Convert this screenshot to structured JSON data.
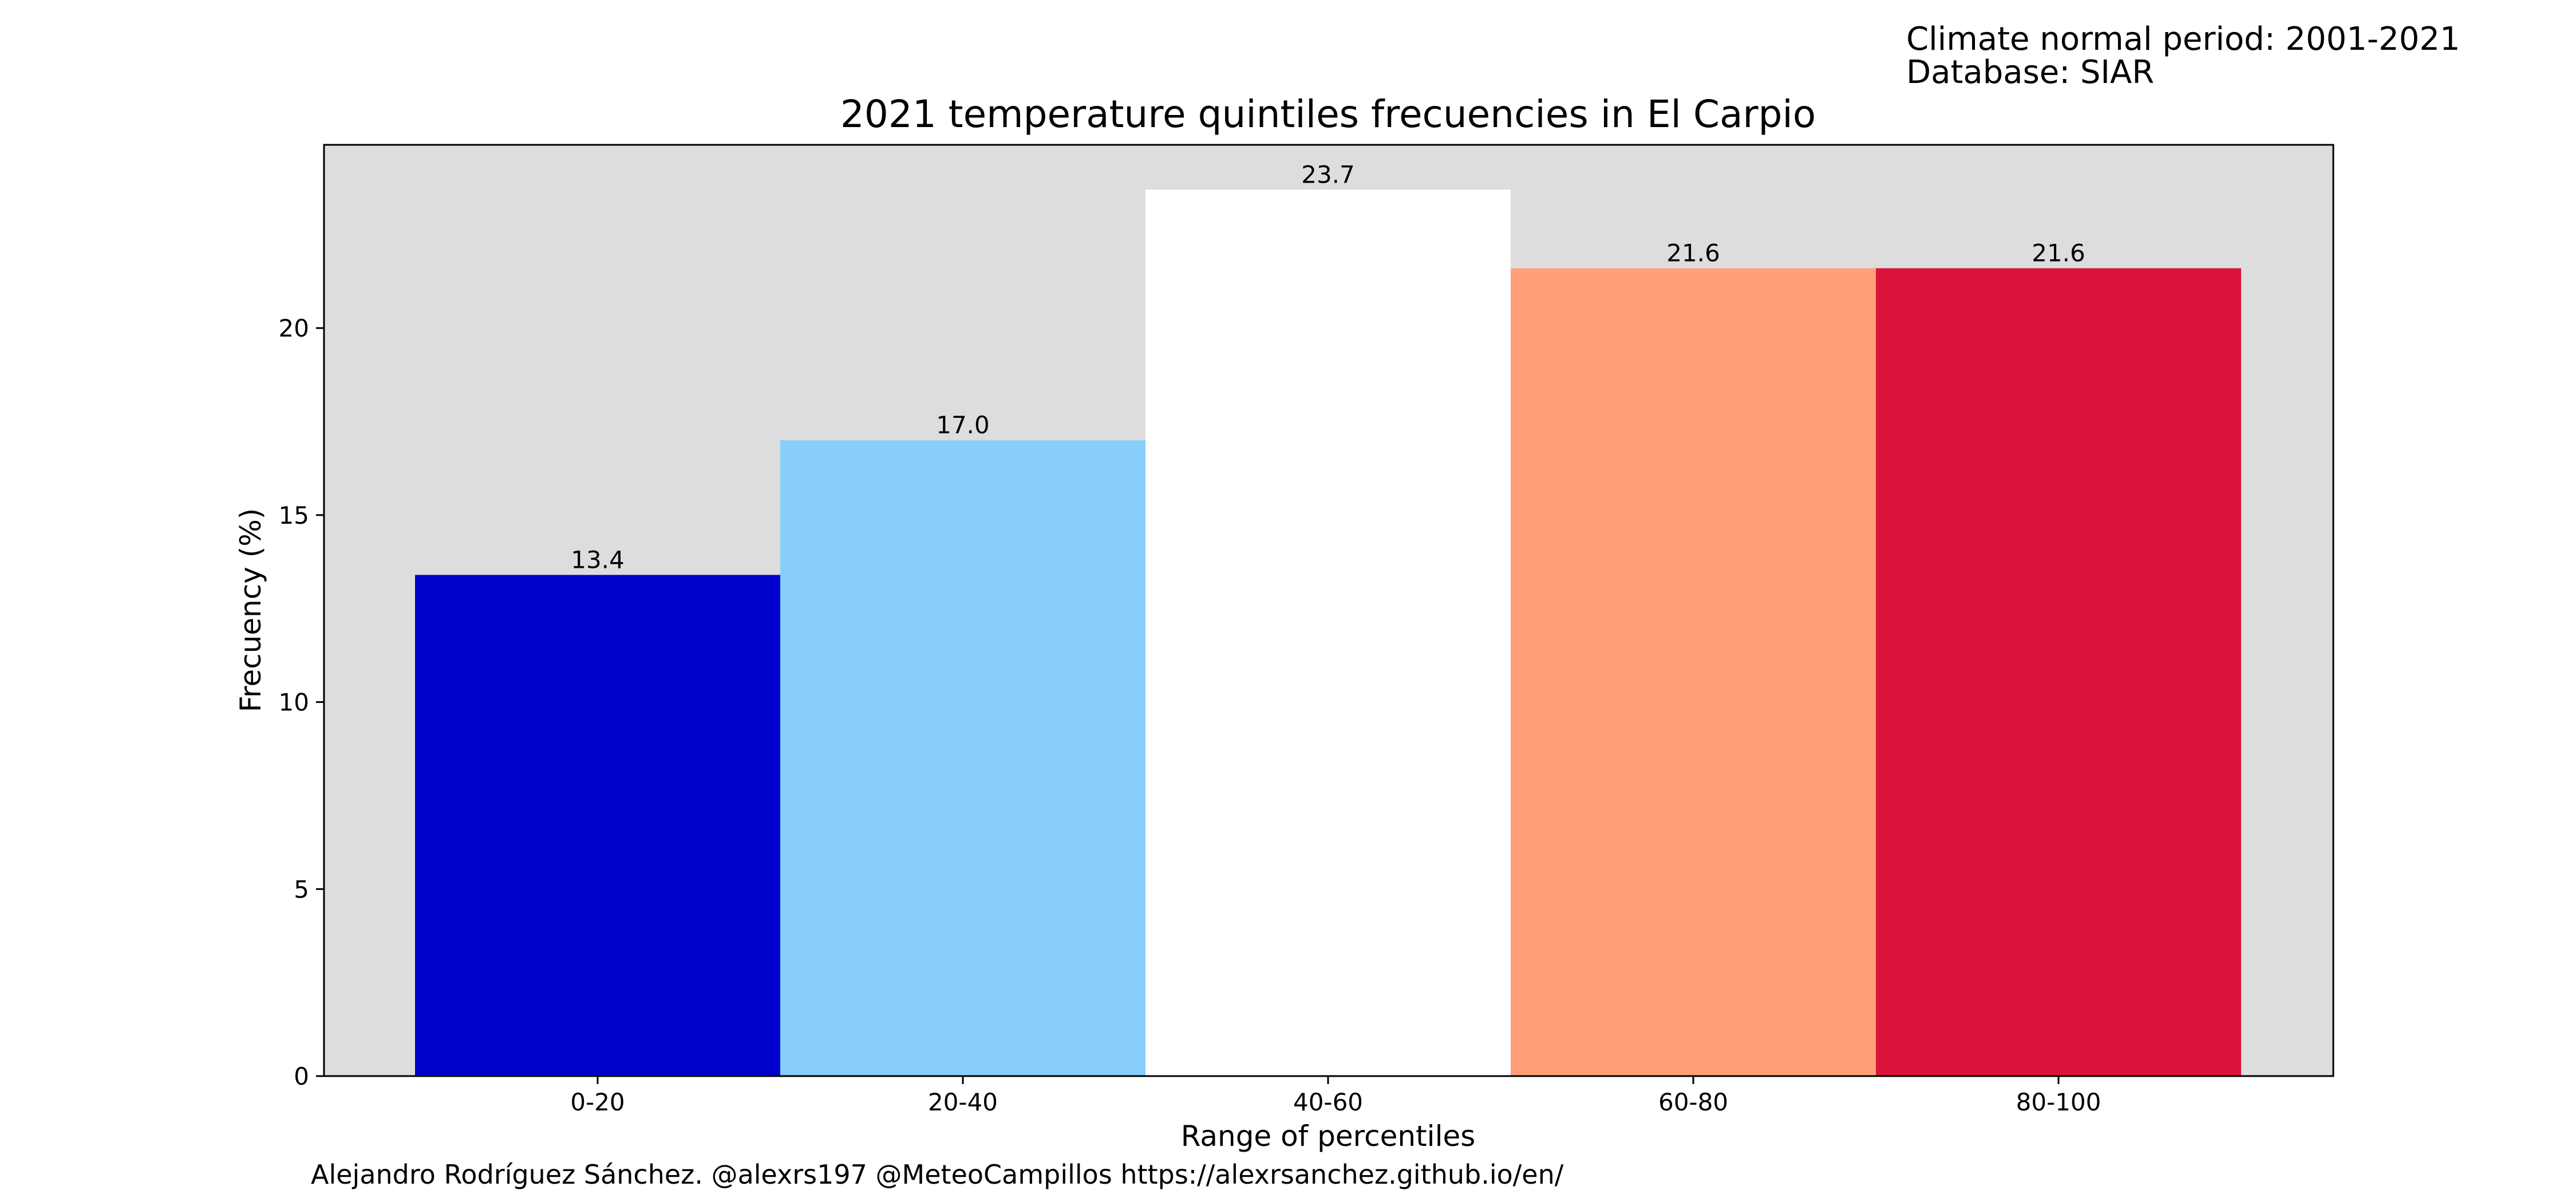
{
  "header": {
    "period_line": "Climate normal period: 2001-2021",
    "database_line": "Database: SIAR"
  },
  "footer": {
    "credits": "Alejandro Rodríguez Sánchez. @alexrs197 @MeteoCampillos   https://alexrsanchez.github.io/en/"
  },
  "chart_data": {
    "type": "bar",
    "title": "2021 temperature quintiles frecuencies in El Carpio",
    "xlabel": "Range of percentiles",
    "ylabel": "Frecuency (%)",
    "categories": [
      "0-20",
      "20-40",
      "40-60",
      "60-80",
      "80-100"
    ],
    "values": [
      13.4,
      17.0,
      23.7,
      21.6,
      21.6
    ],
    "value_labels": [
      "13.4",
      "17.0",
      "23.7",
      "21.6",
      "21.6"
    ],
    "colors": [
      "#0000cd",
      "#87cefa",
      "#ffffff",
      "#ffa07a",
      "#dc143c"
    ],
    "ylim": [
      0,
      24.9
    ],
    "yticks": [
      0,
      5,
      10,
      15,
      20
    ],
    "background": "#dddddd",
    "grid": false,
    "legend": "none"
  }
}
